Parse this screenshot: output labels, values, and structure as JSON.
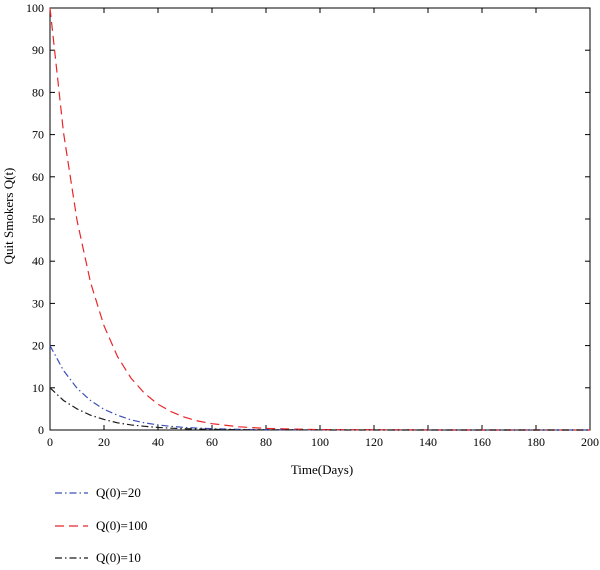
{
  "chart_data": {
    "type": "line",
    "title": "",
    "xlabel": "Time(Days)",
    "ylabel": "Quit Smokers Q(t)",
    "xlim": [
      0,
      200
    ],
    "ylim": [
      0,
      100
    ],
    "xticks": [
      0,
      20,
      40,
      60,
      80,
      100,
      120,
      140,
      160,
      180,
      200
    ],
    "yticks": [
      0,
      10,
      20,
      30,
      40,
      50,
      60,
      70,
      80,
      90,
      100
    ],
    "grid": false,
    "legend_placement": "below",
    "series": [
      {
        "name": "Q(0)=20",
        "color": "#3a4fb8",
        "dash": "dash-dot",
        "x": [
          0,
          5,
          10,
          15,
          20,
          25,
          30,
          35,
          40,
          45,
          50,
          60,
          70,
          80,
          100,
          150,
          200
        ],
        "y": [
          20,
          14.1,
          9.9,
          7.0,
          4.9,
          3.5,
          2.4,
          1.7,
          1.2,
          0.86,
          0.6,
          0.3,
          0.15,
          0.08,
          0.02,
          0,
          0
        ]
      },
      {
        "name": "Q(0)=100",
        "color": "#e8262a",
        "dash": "dashed",
        "x": [
          0,
          5,
          10,
          15,
          20,
          25,
          30,
          35,
          40,
          45,
          50,
          55,
          60,
          70,
          80,
          100,
          150,
          200
        ],
        "y": [
          100,
          70.5,
          49.7,
          35.0,
          24.7,
          17.4,
          12.3,
          8.7,
          6.1,
          4.3,
          3.0,
          2.1,
          1.5,
          0.75,
          0.37,
          0.09,
          0,
          0
        ]
      },
      {
        "name": "Q(0)=10",
        "color": "#1a1a1a",
        "dash": "dash-dot",
        "x": [
          0,
          5,
          10,
          15,
          20,
          25,
          30,
          35,
          40,
          45,
          50,
          60,
          70,
          80,
          100,
          150,
          200
        ],
        "y": [
          10,
          7.0,
          5.0,
          3.5,
          2.5,
          1.7,
          1.2,
          0.87,
          0.61,
          0.43,
          0.3,
          0.15,
          0.07,
          0.04,
          0.01,
          0,
          0
        ]
      }
    ]
  }
}
